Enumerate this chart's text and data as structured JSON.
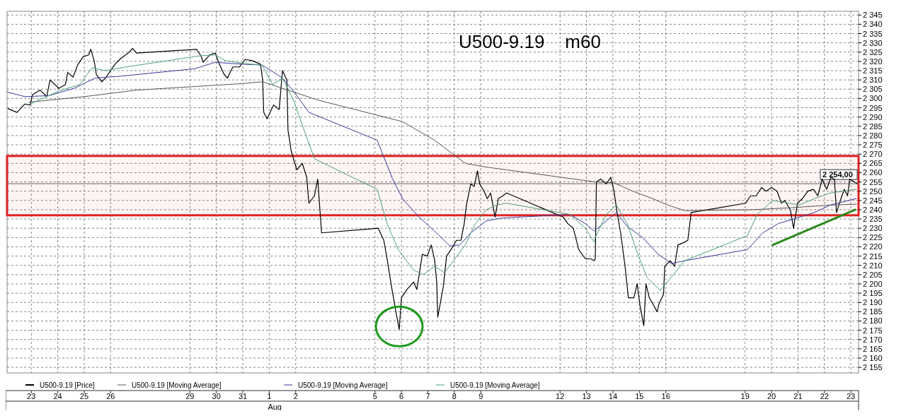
{
  "chart_data": {
    "type": "line",
    "title": "U500-9.19    m60",
    "xlabel": "Aug",
    "legend": "bottom",
    "grid": true,
    "marker": "none",
    "line_style": "solid",
    "xlim": [
      "--07-22T02:00",
      "--08-23T07:00"
    ],
    "xticks": [
      {
        "value": "--07-23",
        "label": "23"
      },
      {
        "value": "--07-24",
        "label": "24"
      },
      {
        "value": "--07-25",
        "label": "25"
      },
      {
        "value": "--07-26",
        "label": "26"
      },
      {
        "value": "--07-29",
        "label": "29"
      },
      {
        "value": "--07-30",
        "label": "30"
      },
      {
        "value": "--07-31",
        "label": "31"
      },
      {
        "value": "--08-01",
        "label": "1"
      },
      {
        "value": "--08-02",
        "label": "2"
      },
      {
        "value": "--08-05",
        "label": "5"
      },
      {
        "value": "--08-06",
        "label": "6"
      },
      {
        "value": "--08-07",
        "label": "7"
      },
      {
        "value": "--08-08",
        "label": "8"
      },
      {
        "value": "--08-09",
        "label": "9"
      },
      {
        "value": "--08-12",
        "label": "12"
      },
      {
        "value": "--08-13",
        "label": "13"
      },
      {
        "value": "--08-14",
        "label": "14"
      },
      {
        "value": "--08-15",
        "label": "15"
      },
      {
        "value": "--08-16",
        "label": "16"
      },
      {
        "value": "--08-19",
        "label": "19"
      },
      {
        "value": "--08-20",
        "label": "20"
      },
      {
        "value": "--08-21",
        "label": "21"
      },
      {
        "value": "--08-22",
        "label": "22"
      },
      {
        "value": "--08-23",
        "label": "23"
      }
    ],
    "ylim": [
      2152,
      2347
    ],
    "yticks": [
      {
        "value": 2155,
        "label": "2 155"
      },
      {
        "value": 2160,
        "label": "2 160"
      },
      {
        "value": 2165,
        "label": "2 165"
      },
      {
        "value": 2170,
        "label": "2 170"
      },
      {
        "value": 2175,
        "label": "2 175"
      },
      {
        "value": 2180,
        "label": "2 180"
      },
      {
        "value": 2185,
        "label": "2 185"
      },
      {
        "value": 2190,
        "label": "2 190"
      },
      {
        "value": 2195,
        "label": "2 195"
      },
      {
        "value": 2200,
        "label": "2 200"
      },
      {
        "value": 2205,
        "label": "2 205"
      },
      {
        "value": 2210,
        "label": "2 210"
      },
      {
        "value": 2215,
        "label": "2 215"
      },
      {
        "value": 2220,
        "label": "2 220"
      },
      {
        "value": 2225,
        "label": "2 225"
      },
      {
        "value": 2230,
        "label": "2 230"
      },
      {
        "value": 2235,
        "label": "2 235"
      },
      {
        "value": 2240,
        "label": "2 240"
      },
      {
        "value": 2245,
        "label": "2 245"
      },
      {
        "value": 2250,
        "label": "2 250"
      },
      {
        "value": 2255,
        "label": "2 255"
      },
      {
        "value": 2260,
        "label": "2 260"
      },
      {
        "value": 2265,
        "label": "2 265"
      },
      {
        "value": 2270,
        "label": "2 270"
      },
      {
        "value": 2275,
        "label": "2 275"
      },
      {
        "value": 2280,
        "label": "2 280"
      },
      {
        "value": 2285,
        "label": "2 285"
      },
      {
        "value": 2290,
        "label": "2 290"
      },
      {
        "value": 2295,
        "label": "2 295"
      },
      {
        "value": 2300,
        "label": "2 300"
      },
      {
        "value": 2305,
        "label": "2 305"
      },
      {
        "value": 2310,
        "label": "2 310"
      },
      {
        "value": 2315,
        "label": "2 315"
      },
      {
        "value": 2320,
        "label": "2 320"
      },
      {
        "value": 2325,
        "label": "2 325"
      },
      {
        "value": 2330,
        "label": "2 330"
      },
      {
        "value": 2335,
        "label": "2 335"
      },
      {
        "value": 2340,
        "label": "2 340"
      },
      {
        "value": 2345,
        "label": "2 345"
      }
    ],
    "ref_lines": [
      {
        "axis": "y",
        "value": 2254,
        "label": "2 254,00",
        "color": "#808080"
      }
    ],
    "bands": [
      {
        "axis": "y",
        "from": 2237,
        "to": 2269,
        "color": "#e02020"
      }
    ],
    "series": [
      {
        "name": "U500-9.19 [Price]",
        "color": "#000000",
        "x": [
          "--07-22T03:00",
          "--07-22T11:00",
          "--07-22T18:00",
          "--07-22T23:00",
          "--07-23T01:00",
          "--07-23T08:00",
          "--07-23T14:00",
          "--07-23T17:00",
          "--07-24T01:00",
          "--07-24T07:00",
          "--07-24T09:00",
          "--07-24T14:00",
          "--07-24T18:00",
          "--07-24T23:00",
          "--07-25T04:00",
          "--07-25T06:00",
          "--07-25T09:00",
          "--07-25T11:00",
          "--07-25T16:00",
          "--07-25T20:00",
          "--07-26T00:00",
          "--07-26T04:00",
          "--07-26T09:00",
          "--07-26T16:00",
          "--07-26T20:00",
          "--07-26T23:30",
          "--07-29T06:00",
          "--07-29T10:00",
          "--07-29T12:00",
          "--07-29T18:00",
          "--07-29T23:00",
          "--07-30T02:00",
          "--07-30T07:00",
          "--07-30T10:00",
          "--07-30T15:00",
          "--07-30T21:00",
          "--07-31T02:00",
          "--07-31T08:00",
          "--07-31T16:00",
          "--07-31T18:00",
          "--07-31T19:00",
          "--07-31T22:00",
          "--08-01T04:00",
          "--08-01T09:00",
          "--08-01T12:00",
          "--08-01T16:00",
          "--08-01T17:00",
          "--08-01T20:00",
          "--08-02T01:00",
          "--08-02T06:00",
          "--08-02T10:00",
          "--08-02T12:00",
          "--08-02T17:00",
          "--08-02T20:00",
          "--08-02T23:30",
          "--08-05T03:00",
          "--08-05T08:00",
          "--08-05T11:00",
          "--08-05T15:00",
          "--08-05T19:00",
          "--08-05T22:00",
          "--08-06T00:00",
          "--08-06T05:00",
          "--08-06T11:00",
          "--08-06T14:00",
          "--08-06T19:00",
          "--08-06T23:30",
          "--08-07T03:00",
          "--08-07T06:00",
          "--08-07T08:00",
          "--08-07T09:00",
          "--08-07T14:00",
          "--08-07T17:00",
          "--08-07T21:00",
          "--08-08T02:00",
          "--08-08T06:00",
          "--08-08T09:00",
          "--08-08T11:00",
          "--08-08T15:00",
          "--08-08T18:00",
          "--08-08T21:00",
          "--08-08T23:00",
          "--08-09T03:00",
          "--08-09T06:00",
          "--08-09T09:00",
          "--08-09T13:00",
          "--08-09T16:00",
          "--08-09T20:00",
          "--08-09T23:30",
          "--08-12T03:00",
          "--08-12T07:00",
          "--08-12T12:00",
          "--08-12T17:00",
          "--08-12T23:00",
          "--08-13T04:00",
          "--08-13T07:00",
          "--08-13T08:00",
          "--08-13T09:00",
          "--08-13T13:00",
          "--08-13T18:00",
          "--08-13T22:00",
          "--08-14T01:00",
          "--08-14T04:00",
          "--08-14T07:00",
          "--08-14T11:00",
          "--08-14T14:00",
          "--08-14T19:00",
          "--08-14T22:00",
          "--08-15T00:30",
          "--08-15T04:00",
          "--08-15T06:00",
          "--08-15T09:00",
          "--08-15T12:00",
          "--08-15T16:00",
          "--08-15T18:00",
          "--08-15T22:00",
          "--08-15T23:00",
          "--08-16T04:00",
          "--08-16T08:00",
          "--08-16T11:00",
          "--08-16T17:00",
          "--08-16T20:00",
          "--08-16T23:00",
          "--08-19T00:30",
          "--08-19T05:00",
          "--08-19T10:00",
          "--08-19T15:00",
          "--08-19T19:00",
          "--08-20T00:00",
          "--08-20T05:00",
          "--08-20T09:00",
          "--08-20T12:00",
          "--08-20T17:00",
          "--08-20T20:00",
          "--08-20T23:30",
          "--08-21T04:00",
          "--08-21T09:00",
          "--08-21T14:00",
          "--08-21T18:00",
          "--08-21T22:00",
          "--08-22T02:00",
          "--08-22T06:00",
          "--08-22T09:00",
          "--08-22T11:00",
          "--08-22T15:00",
          "--08-22T18:00",
          "--08-22T21:00",
          "--08-22T23:00",
          "--08-23T03:00",
          "--08-23T06:00"
        ],
        "values": [
          2294.5,
          2292.5,
          2297,
          2296.5,
          2302,
          2304.5,
          2301,
          2310,
          2305.5,
          2307.5,
          2314,
          2311.5,
          2318,
          2322.5,
          2323.5,
          2326.5,
          2320.5,
          2313,
          2309,
          2311.5,
          2315,
          2318.5,
          2321.5,
          2324.5,
          2327,
          2324.5,
          2326.5,
          2323,
          2319.5,
          2323.5,
          2324.5,
          2319.5,
          2313,
          2311,
          2317,
          2317,
          2321,
          2320.5,
          2318.5,
          2310,
          2292.5,
          2289,
          2296.5,
          2294,
          2315,
          2310,
          2283,
          2271.5,
          2261.5,
          2265,
          2257.5,
          2243.5,
          2247.5,
          2256.5,
          2227.5,
          2230,
          2223.5,
          2213.5,
          2198.5,
          2185,
          2175.5,
          2192.5,
          2197,
          2201,
          2197,
          2216,
          2215,
          2221,
          2213.5,
          2201,
          2182,
          2198.5,
          2215,
          2218.5,
          2223.5,
          2223.5,
          2232.5,
          2242.5,
          2254,
          2252.5,
          2261,
          2254,
          2250,
          2246,
          2249,
          2236,
          2246,
          2247.5,
          2249,
          2236,
          2232.5,
          2230,
          2218.5,
          2213.5,
          2213.5,
          2212.5,
          2213.5,
          2255,
          2256.5,
          2254,
          2257.5,
          2250,
          2237.5,
          2227.5,
          2209.5,
          2192.5,
          2192.5,
          2200,
          2188.5,
          2177.5,
          2200,
          2192.5,
          2189.5,
          2185,
          2189.5,
          2194.5,
          2209.5,
          2212.5,
          2209.5,
          2221,
          2222.5,
          2223.5,
          2238.5,
          2243.5,
          2247.5,
          2247.5,
          2252,
          2250,
          2252,
          2250,
          2243.5,
          2245,
          2240,
          2230,
          2243.5,
          2246,
          2250,
          2251,
          2247.5,
          2256.5,
          2251,
          2257.5,
          2256.5,
          2238.5,
          2246,
          2251,
          2247.5,
          2256.5,
          2255,
          2254
        ]
      },
      {
        "name": "U500-9.19 [Moving Average]",
        "color": "#555555",
        "x": [
          "--07-22T22:00",
          "--07-25T00:30",
          "--07-26T23:30",
          "--07-30T23:00",
          "--07-31T18:00",
          "--08-01T09:00",
          "--08-02T21:00",
          "--08-06T01:00",
          "--08-07T06:00",
          "--08-08T10:00",
          "--08-09T05:00",
          "--08-09T23:30",
          "--08-13T08:00",
          "--08-14T01:00",
          "--08-14T18:00",
          "--08-15T12:00",
          "--08-16T02:00",
          "--08-16T17:00",
          "--08-19T06:00",
          "--08-20T16:00",
          "--08-22T05:00",
          "--08-23T05:00"
        ],
        "values": [
          2298,
          2301,
          2304.5,
          2308,
          2309,
          2306,
          2299,
          2287.5,
          2277.5,
          2265,
          2263,
          2261.5,
          2255,
          2254.5,
          2250,
          2246,
          2242.5,
          2239.5,
          2240,
          2241,
          2242.5,
          2243
        ]
      },
      {
        "name": "U500-9.19 [Moving Average]",
        "color": "#3a3a9e",
        "x": [
          "--07-22T02:00",
          "--07-22T18:00",
          "--07-23T16:00",
          "--07-24T15:00",
          "--07-25T10:00",
          "--07-26T09:00",
          "--07-29T04:00",
          "--07-29T23:00",
          "--07-30T23:00",
          "--07-31T17:30",
          "--08-01T07:00",
          "--08-01T12:00",
          "--08-01T22:00",
          "--08-02T12:00",
          "--08-05T02:00",
          "--08-05T16:00",
          "--08-06T01:00",
          "--08-06T16:00",
          "--08-07T06:00",
          "--08-07T20:00",
          "--08-08T05:00",
          "--08-08T15:00",
          "--08-09T05:00",
          "--08-09T19:00",
          "--08-12T09:00",
          "--08-12T23:00",
          "--08-13T07:00",
          "--08-13T18:00",
          "--08-14T03:00",
          "--08-14T13:00",
          "--08-15T03:00",
          "--08-15T17:00",
          "--08-16T05:00",
          "--08-16T17:00",
          "--08-19T02:00",
          "--08-19T16:00",
          "--08-20T06:00",
          "--08-20T20:00",
          "--08-21T15:00",
          "--08-22T05:00",
          "--08-23T05:00"
        ],
        "values": [
          2303.5,
          2301,
          2301.5,
          2305.5,
          2311,
          2312,
          2316,
          2319.5,
          2318.5,
          2318,
          2313,
          2311,
          2304,
          2292.5,
          2277.5,
          2256.5,
          2246,
          2236,
          2228.5,
          2220.5,
          2221,
          2227.5,
          2234,
          2235.5,
          2237.5,
          2232.5,
          2228.5,
          2234,
          2238.5,
          2231,
          2225,
          2216,
          2211,
          2212.5,
          2218.5,
          2227.5,
          2232.5,
          2235,
          2238.5,
          2242.5,
          2246
        ]
      },
      {
        "name": "U500-9.19 [Moving Average]",
        "color": "#4e9e74",
        "x": [
          "--07-22T23:00",
          "--07-24T01:00",
          "--07-24T20:00",
          "--07-25T07:00",
          "--07-25T19:00",
          "--07-26T14:00",
          "--07-29T09:00",
          "--07-29T23:00",
          "--07-30T08:00",
          "--07-30T23:00",
          "--07-31T17:30",
          "--08-01T03:00",
          "--08-01T12:00",
          "--08-01T22:00",
          "--08-02T07:00",
          "--08-02T17:00",
          "--08-05T02:00",
          "--08-05T11:00",
          "--08-05T21:00",
          "--08-06T11:00",
          "--08-06T20:00",
          "--08-07T06:00",
          "--08-07T15:00",
          "--08-08T00:30",
          "--08-08T10:00",
          "--08-08T19:00",
          "--08-09T05:00",
          "--08-09T14:00",
          "--08-09T23:30",
          "--08-12T09:00",
          "--08-12T23:00",
          "--08-13T07:00",
          "--08-13T08:00",
          "--08-13T18:00",
          "--08-14T03:00",
          "--08-14T13:00",
          "--08-14T22:00",
          "--08-15T07:00",
          "--08-15T19:00",
          "--08-16T07:00",
          "--08-16T17:00",
          "--08-19T02:00",
          "--08-19T11:00",
          "--08-20T01:00",
          "--08-20T16:00",
          "--08-21T01:00",
          "--08-21T15:00",
          "--08-22T05:00",
          "--08-23T05:00"
        ],
        "values": [
          2297,
          2304,
          2307.5,
          2316.5,
          2315,
          2317,
          2323,
          2323.5,
          2320.5,
          2319,
          2318,
          2307.5,
          2311,
          2299,
          2284,
          2267.5,
          2251,
          2232.5,
          2218.5,
          2207.5,
          2205,
          2209.5,
          2206,
          2213.5,
          2221,
          2232.5,
          2240,
          2242.5,
          2243.5,
          2237.5,
          2230,
          2222.5,
          2225,
          2237.5,
          2242.5,
          2232.5,
          2217,
          2203.5,
          2196.5,
          2205,
          2212.5,
          2226,
          2237.5,
          2245,
          2243.5,
          2242.5,
          2246,
          2249,
          2251
        ]
      },
      {
        "type": "line",
        "color": "#2a8a1a",
        "x": [
          "--08-20T01:00",
          "--08-23T04:00"
        ],
        "values": [
          2221,
          2240
        ]
      }
    ]
  }
}
